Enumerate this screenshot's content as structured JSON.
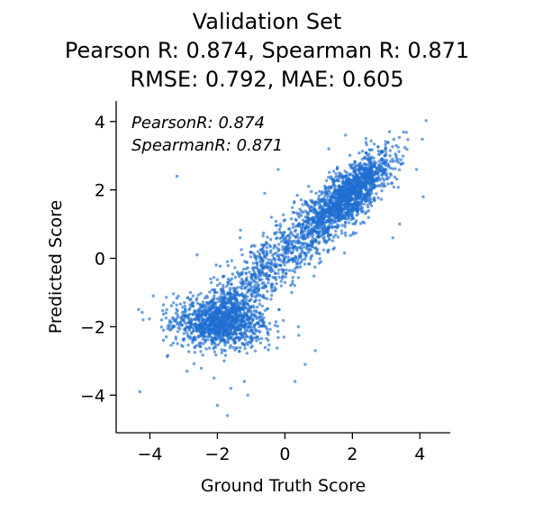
{
  "title_lines": [
    "Validation Set",
    "Pearson R: 0.874, Spearman R: 0.871",
    "RMSE: 0.792, MAE: 0.605"
  ],
  "chart_data": {
    "type": "scatter",
    "title": "Validation Set\nPearson R: 0.874, Spearman R: 0.871\nRMSE: 0.792, MAE: 0.605",
    "xlabel": "Ground Truth Score",
    "ylabel": "Predicted Score",
    "xlim": [
      -5.0,
      4.9
    ],
    "ylim": [
      -5.1,
      4.6
    ],
    "xticks": [
      -4,
      -2,
      0,
      2,
      4
    ],
    "yticks": [
      -4,
      -2,
      0,
      2,
      4
    ],
    "xtick_labels": [
      "−4",
      "−2",
      "0",
      "2",
      "4"
    ],
    "ytick_labels": [
      "−4",
      "−2",
      "0",
      "2",
      "4"
    ],
    "grid": false,
    "point_color": "#1f6fd1",
    "annotations": [
      "PearsonR: 0.874",
      "SpearmanR: 0.871"
    ],
    "points": [
      [
        -4.2,
        -1.8
      ],
      [
        -4.3,
        -3.9
      ],
      [
        -3.2,
        2.4
      ],
      [
        -3.9,
        -1.1
      ],
      [
        -3.5,
        -1.5
      ],
      [
        -3.6,
        -2.1
      ],
      [
        -3.3,
        -1.3
      ],
      [
        -3.0,
        -2.4
      ],
      [
        -2.8,
        -1.0
      ],
      [
        -2.9,
        -3.3
      ],
      [
        -2.6,
        0.1
      ],
      [
        -2.2,
        -0.6
      ],
      [
        -2.1,
        -3.5
      ],
      [
        -2.0,
        -4.3
      ],
      [
        -1.8,
        -3.0
      ],
      [
        -1.7,
        -4.6
      ],
      [
        -1.6,
        -3.8
      ],
      [
        -1.1,
        -4.0
      ],
      [
        -1.2,
        -3.6
      ],
      [
        -0.6,
        1.9
      ],
      [
        -0.4,
        1.2
      ],
      [
        -0.2,
        2.6
      ],
      [
        0.3,
        -3.6
      ],
      [
        0.6,
        -3.1
      ],
      [
        0.9,
        -2.7
      ],
      [
        1.3,
        3.2
      ],
      [
        1.8,
        3.6
      ],
      [
        2.4,
        3.5
      ],
      [
        3.1,
        3.7
      ],
      [
        3.3,
        3.3
      ],
      [
        4.1,
        1.8
      ],
      [
        3.9,
        2.6
      ],
      [
        3.4,
        1.0
      ],
      [
        3.2,
        0.6
      ],
      [
        3.3,
        3.0
      ],
      [
        -2.5,
        -2.0
      ],
      [
        -2.3,
        -1.6
      ],
      [
        -1.5,
        -2.4
      ],
      [
        -1.0,
        -1.2
      ],
      [
        -0.5,
        -0.6
      ],
      [
        0.0,
        0.0
      ],
      [
        0.5,
        0.6
      ],
      [
        1.0,
        1.1
      ],
      [
        1.5,
        1.5
      ],
      [
        2.0,
        2.0
      ],
      [
        2.5,
        2.3
      ],
      [
        3.0,
        2.6
      ],
      [
        -0.8,
        -1.9
      ],
      [
        0.2,
        -1.0
      ],
      [
        0.4,
        -2.0
      ]
    ]
  }
}
